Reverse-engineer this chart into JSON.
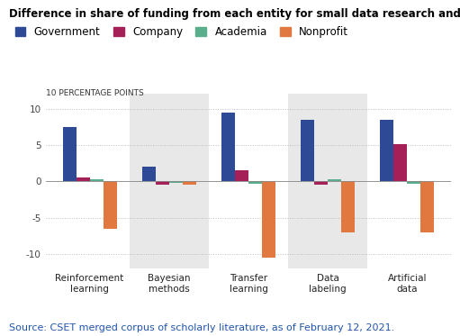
{
  "title": "Difference in share of funding from each entity for small data research and AI overall",
  "categories": [
    "Reinforcement\nlearning",
    "Bayesian\nmethods",
    "Transfer\nlearning",
    "Data\nlabeling",
    "Artificial\ndata"
  ],
  "series": {
    "Government": [
      7.5,
      2.0,
      9.5,
      8.5,
      8.5
    ],
    "Company": [
      0.5,
      -0.4,
      1.5,
      -0.4,
      5.1
    ],
    "Academia": [
      0.3,
      -0.2,
      -0.3,
      0.3,
      -0.3
    ],
    "Nonprofit": [
      -6.5,
      -0.4,
      -10.5,
      -7.0,
      -7.0
    ]
  },
  "colors": {
    "Government": "#2E4A96",
    "Company": "#A52057",
    "Academia": "#5BAE8C",
    "Nonprofit": "#E07840"
  },
  "ylabel": "10 PERCENTAGE POINTS",
  "ylim": [
    -12,
    12
  ],
  "yticks": [
    -10,
    -5,
    0,
    5,
    10
  ],
  "source": "Source: CSET merged corpus of scholarly literature, as of February 12, 2021.",
  "shaded_groups": [
    1,
    3
  ],
  "shade_color": "#E8E8E8",
  "bar_width": 0.17,
  "title_fontsize": 8.5,
  "legend_fontsize": 8.5,
  "axis_fontsize": 7.5,
  "source_fontsize": 8
}
